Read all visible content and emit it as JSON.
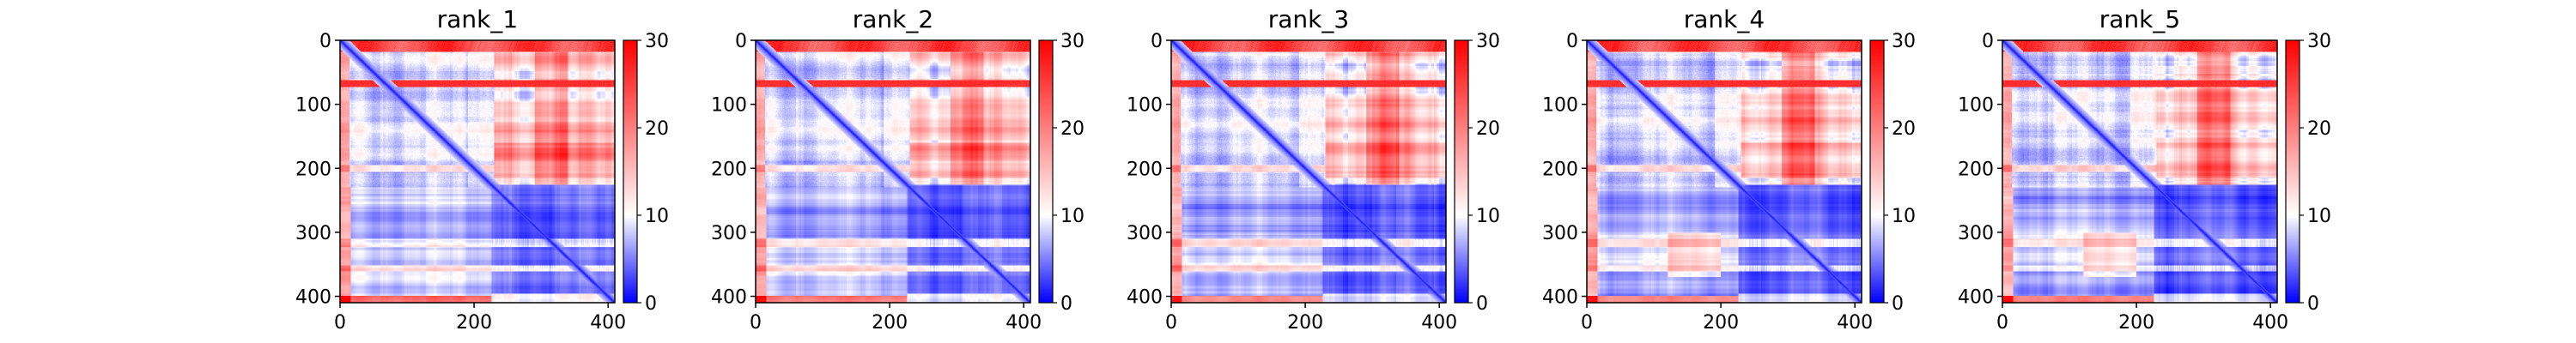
{
  "figure": {
    "panels": [
      {
        "title": "rank_1"
      },
      {
        "title": "rank_2"
      },
      {
        "title": "rank_3"
      },
      {
        "title": "rank_4"
      },
      {
        "title": "rank_5"
      }
    ]
  },
  "chart_data": {
    "type": "heatmap",
    "description_of_cells": "Predicted aligned error (PAE) style matrices, one per rank",
    "panels": [
      {
        "title": "rank_1",
        "variant": 0
      },
      {
        "title": "rank_2",
        "variant": 1
      },
      {
        "title": "rank_3",
        "variant": 2
      },
      {
        "title": "rank_4",
        "variant": 3
      },
      {
        "title": "rank_5",
        "variant": 4
      }
    ],
    "matrix_size": 410,
    "x_ticks": [
      0,
      200,
      400
    ],
    "y_ticks": [
      0,
      100,
      200,
      300,
      400
    ],
    "xlim": [
      0,
      410
    ],
    "ylim": [
      410,
      0
    ],
    "colorbar": {
      "min": 0,
      "max": 30,
      "ticks": [
        0,
        10,
        20,
        30
      ],
      "colormap": [
        "#0000ff",
        "#ffffff",
        "#ff0000"
      ],
      "center": 10
    },
    "grid": false,
    "legend": "none"
  }
}
